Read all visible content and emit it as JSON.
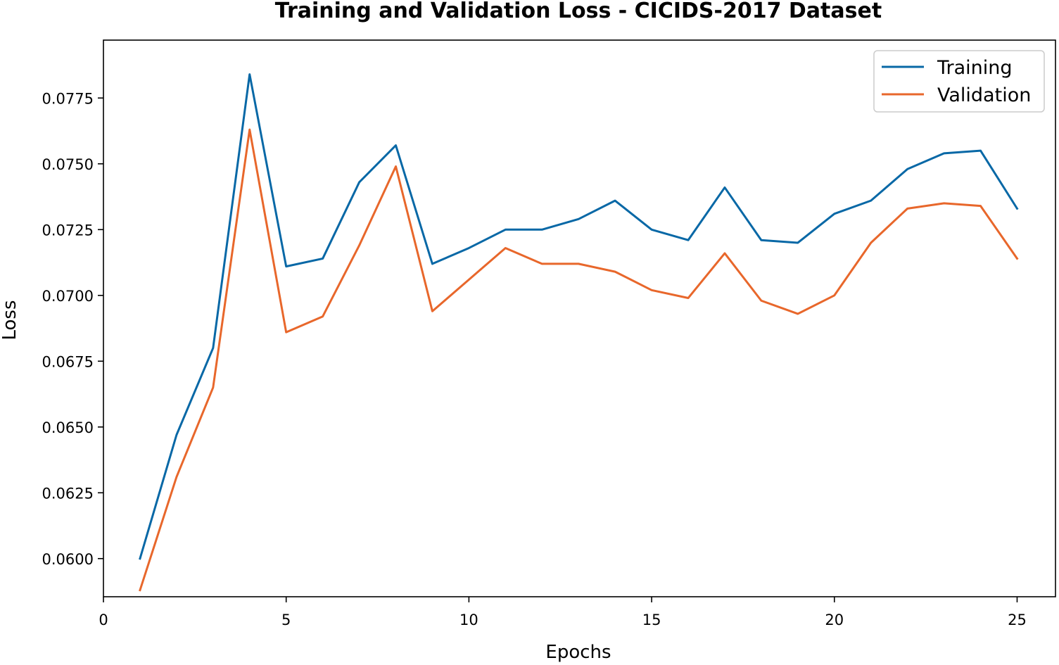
{
  "chart_data": {
    "type": "line",
    "title": "Training and Validation Loss - CICIDS-2017 Dataset",
    "xlabel": "Epochs",
    "ylabel": "Loss",
    "xlim": [
      0,
      26.05
    ],
    "ylim": [
      0.05855,
      0.0797
    ],
    "x_ticks": [
      0,
      5,
      10,
      15,
      20,
      25
    ],
    "x_tick_labels": [
      "0",
      "5",
      "10",
      "15",
      "20",
      "25"
    ],
    "y_ticks": [
      0.06,
      0.0625,
      0.065,
      0.0675,
      0.07,
      0.0725,
      0.075,
      0.0775
    ],
    "y_tick_labels": [
      "0.0600",
      "0.0625",
      "0.0650",
      "0.0675",
      "0.0700",
      "0.0725",
      "0.0750",
      "0.0775"
    ],
    "grid": false,
    "legend_position": "top-right",
    "x": [
      1,
      2,
      3,
      4,
      5,
      6,
      7,
      8,
      9,
      10,
      11,
      12,
      13,
      14,
      15,
      16,
      17,
      18,
      19,
      20,
      21,
      22,
      23,
      24,
      25
    ],
    "series": [
      {
        "name": "Training",
        "color": "#0868a6",
        "values": [
          0.06,
          0.0647,
          0.068,
          0.0784,
          0.0711,
          0.0714,
          0.0743,
          0.0757,
          0.0712,
          0.0718,
          0.0725,
          0.0725,
          0.0729,
          0.0736,
          0.0725,
          0.0721,
          0.0741,
          0.0721,
          0.072,
          0.0731,
          0.0736,
          0.0748,
          0.0754,
          0.0755,
          0.0733
        ]
      },
      {
        "name": "Validation",
        "color": "#e8672b",
        "values": [
          0.0588,
          0.0631,
          0.0665,
          0.0763,
          0.0686,
          0.0692,
          0.0719,
          0.0749,
          0.0694,
          0.0706,
          0.0718,
          0.0712,
          0.0712,
          0.0709,
          0.0702,
          0.0699,
          0.0716,
          0.0698,
          0.0693,
          0.07,
          0.072,
          0.0733,
          0.0735,
          0.0734,
          0.0714
        ]
      }
    ]
  }
}
